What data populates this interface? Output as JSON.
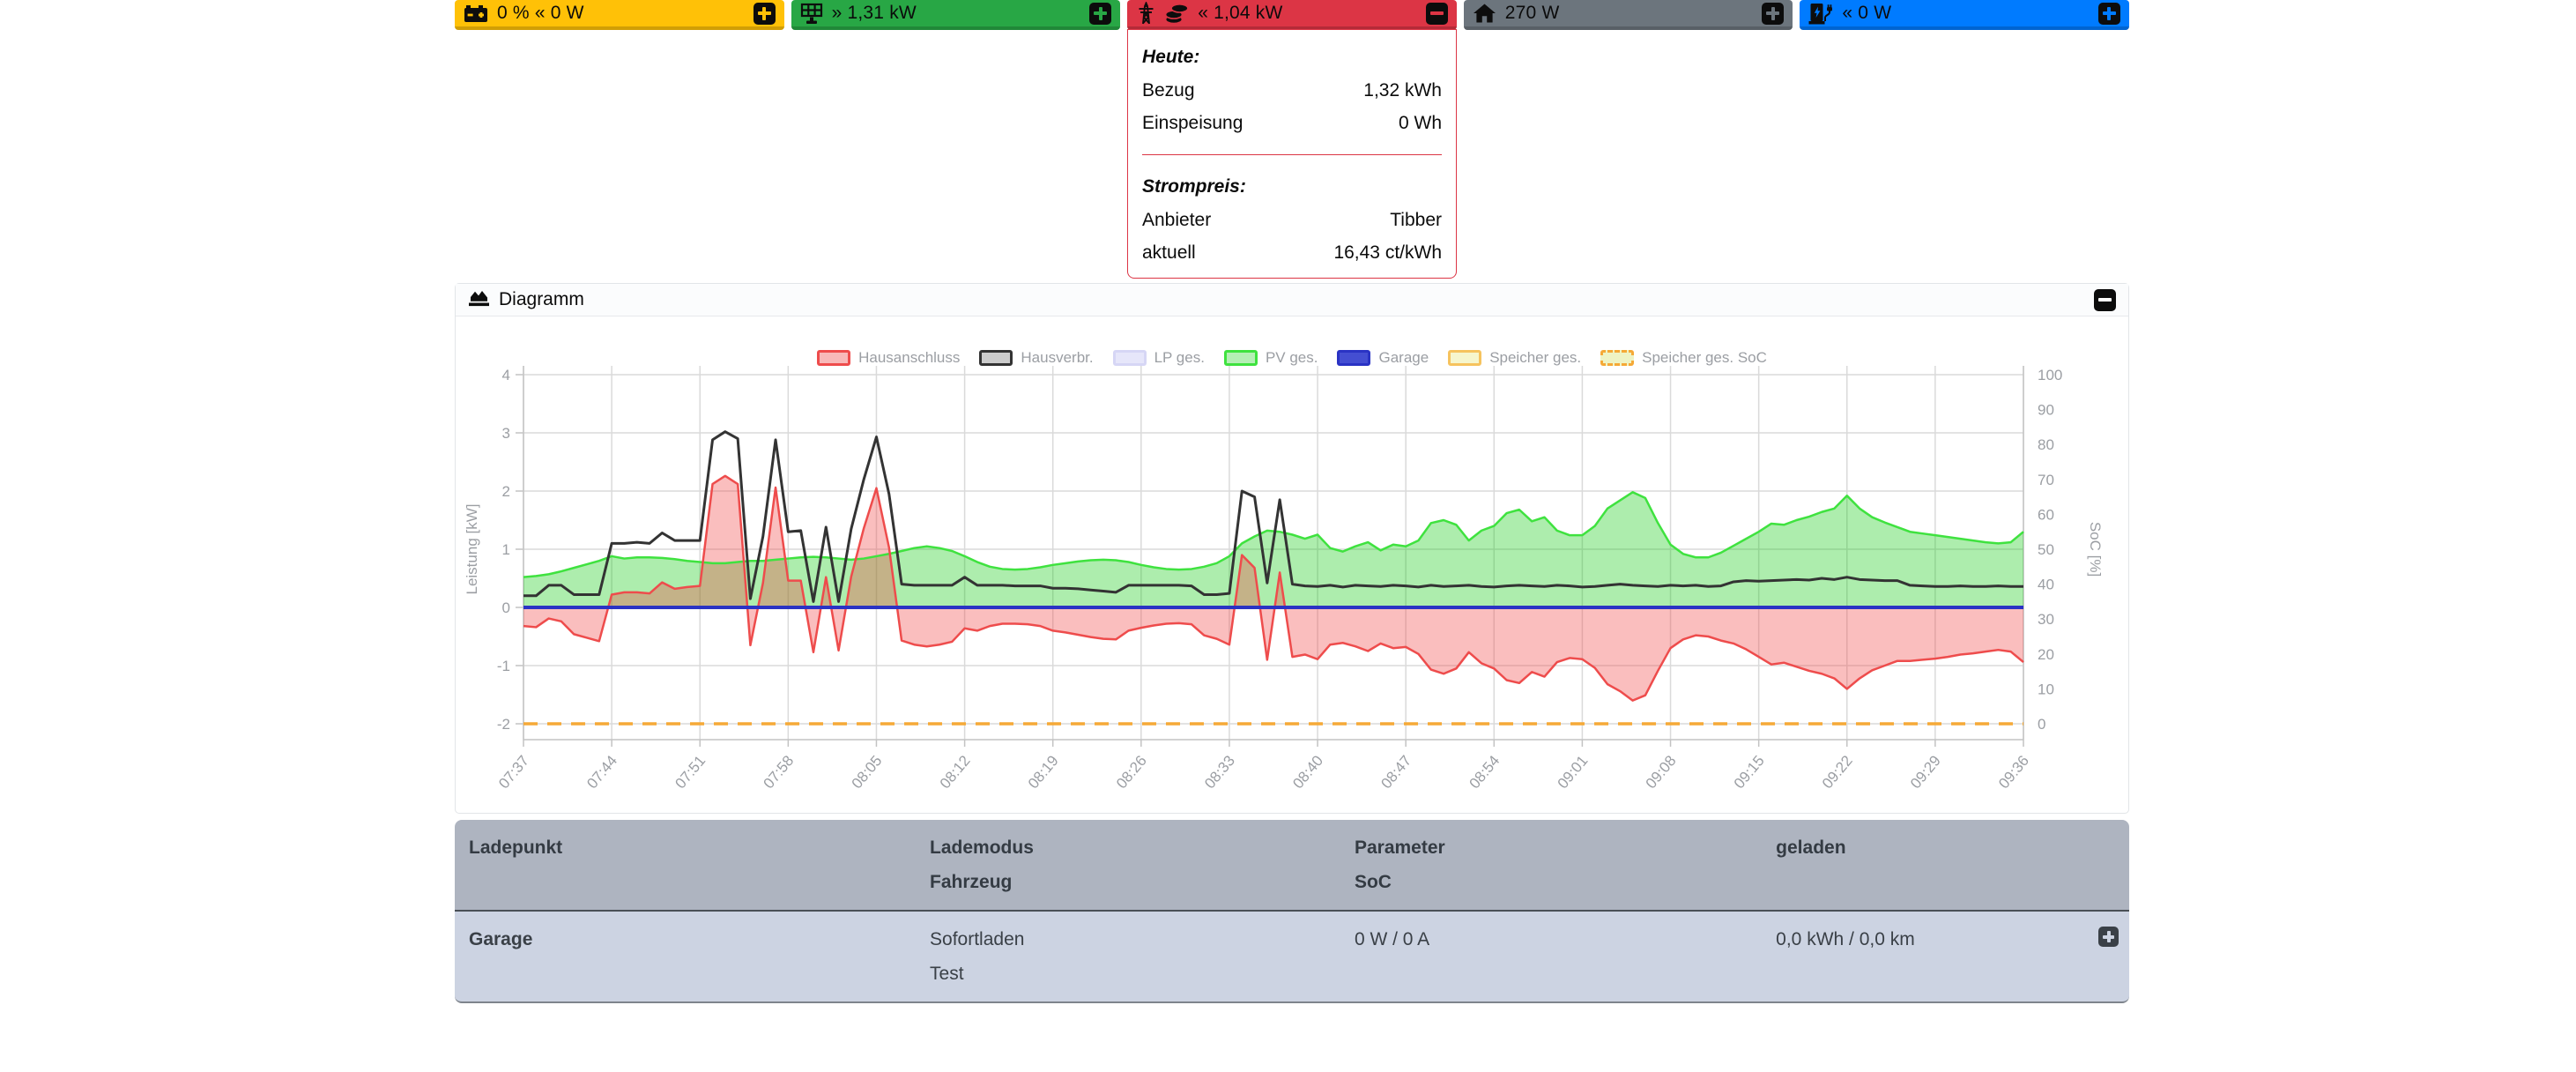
{
  "top_bar": {
    "tiles": [
      {
        "name": "battery",
        "icon": "car-battery-icon",
        "text": "0 % « 0 W",
        "bg": "#ffc107",
        "action": "expand"
      },
      {
        "name": "pv",
        "icon": "solar-panel-icon",
        "text": "» 1,31 kW",
        "bg": "#28a745",
        "action": "expand"
      },
      {
        "name": "grid",
        "icon": "transmission-tower-icon+coins-icon",
        "text": "« 1,04 kW",
        "bg": "#dc3545",
        "action": "collapse"
      },
      {
        "name": "house",
        "icon": "home-icon",
        "text": "270 W",
        "bg": "#6c757d",
        "action": "expand"
      },
      {
        "name": "chargepoint",
        "icon": "charging-station-icon",
        "text": "« 0 W",
        "bg": "#007bff",
        "action": "expand"
      }
    ]
  },
  "grid_popup": {
    "accent": "#dc3545",
    "section1_title": "Heute:",
    "rows": [
      {
        "label": "Bezug",
        "value": "1,32 kWh"
      },
      {
        "label": "Einspeisung",
        "value": "0 Wh"
      }
    ],
    "section2_title": "Strompreis:",
    "rows2": [
      {
        "label": "Anbieter",
        "value": "Tibber"
      },
      {
        "label": "aktuell",
        "value": "16,43 ct/kWh"
      }
    ]
  },
  "diagram_card": {
    "title": "Diagramm",
    "collapse_action": "collapse"
  },
  "chart_data": {
    "type": "line",
    "title": "",
    "xlabel": "",
    "ylabel": "Leistung [kW]",
    "y2label": "SoC [%]",
    "ylim": [
      -2,
      4
    ],
    "y2lim": [
      0,
      100
    ],
    "grid": true,
    "legend_position": "top",
    "x_tick_labels": [
      "07:37",
      "07:44",
      "07:51",
      "07:58",
      "08:05",
      "08:12",
      "08:19",
      "08:26",
      "08:33",
      "08:40",
      "08:47",
      "08:54",
      "09:01",
      "09:08",
      "09:15",
      "09:22",
      "09:29",
      "09:36"
    ],
    "minutes_per_point": 1,
    "points_per_tick": 7,
    "series": [
      {
        "name": "Hausanschluss",
        "color": "#ee4c4c",
        "fill": "rgba(240,70,70,0.35)",
        "legend_fill": "#f8b9b9",
        "width": 2.5,
        "z": 3,
        "values": [
          -0.32,
          -0.34,
          -0.19,
          -0.24,
          -0.46,
          -0.52,
          -0.58,
          0.22,
          0.26,
          0.26,
          0.24,
          0.43,
          0.32,
          0.35,
          0.37,
          2.12,
          2.26,
          2.12,
          -0.65,
          0.42,
          2.06,
          0.46,
          0.46,
          -0.77,
          0.52,
          -0.74,
          0.53,
          1.36,
          2.05,
          1.03,
          -0.57,
          -0.64,
          -0.67,
          -0.64,
          -0.59,
          -0.36,
          -0.4,
          -0.32,
          -0.28,
          -0.28,
          -0.29,
          -0.32,
          -0.4,
          -0.43,
          -0.47,
          -0.51,
          -0.54,
          -0.55,
          -0.4,
          -0.35,
          -0.31,
          -0.28,
          -0.27,
          -0.29,
          -0.48,
          -0.54,
          -0.64,
          0.9,
          0.68,
          -0.9,
          0.6,
          -0.85,
          -0.81,
          -0.89,
          -0.64,
          -0.61,
          -0.67,
          -0.75,
          -0.62,
          -0.7,
          -0.68,
          -0.8,
          -1.07,
          -1.14,
          -1.05,
          -0.77,
          -0.96,
          -1.05,
          -1.25,
          -1.3,
          -1.11,
          -1.19,
          -0.94,
          -0.87,
          -0.89,
          -1.04,
          -1.32,
          -1.44,
          -1.6,
          -1.51,
          -1.09,
          -0.7,
          -0.55,
          -0.48,
          -0.5,
          -0.57,
          -0.62,
          -0.72,
          -0.85,
          -0.98,
          -0.95,
          -1.02,
          -1.09,
          -1.14,
          -1.22,
          -1.4,
          -1.22,
          -1.08,
          -1.0,
          -0.92,
          -0.92,
          -0.9,
          -0.88,
          -0.85,
          -0.81,
          -0.79,
          -0.76,
          -0.73,
          -0.76,
          -0.94
        ]
      },
      {
        "name": "Hausverbr.",
        "color": "#333333",
        "legend_fill": "#cccccc",
        "width": 3,
        "z": 4,
        "values": [
          0.2,
          0.2,
          0.38,
          0.38,
          0.22,
          0.22,
          0.22,
          1.1,
          1.1,
          1.12,
          1.1,
          1.28,
          1.15,
          1.15,
          1.15,
          2.88,
          3.02,
          2.9,
          0.15,
          1.22,
          2.88,
          1.3,
          1.32,
          0.1,
          1.38,
          0.1,
          1.35,
          2.2,
          2.93,
          1.95,
          0.4,
          0.38,
          0.38,
          0.38,
          0.38,
          0.52,
          0.38,
          0.38,
          0.38,
          0.37,
          0.37,
          0.37,
          0.33,
          0.33,
          0.32,
          0.3,
          0.28,
          0.26,
          0.38,
          0.38,
          0.38,
          0.38,
          0.38,
          0.37,
          0.22,
          0.22,
          0.24,
          2.0,
          1.9,
          0.42,
          1.85,
          0.4,
          0.37,
          0.36,
          0.38,
          0.35,
          0.38,
          0.37,
          0.36,
          0.38,
          0.37,
          0.35,
          0.38,
          0.36,
          0.37,
          0.38,
          0.36,
          0.35,
          0.37,
          0.38,
          0.37,
          0.36,
          0.38,
          0.37,
          0.35,
          0.36,
          0.38,
          0.4,
          0.38,
          0.37,
          0.36,
          0.38,
          0.37,
          0.38,
          0.36,
          0.37,
          0.44,
          0.46,
          0.45,
          0.46,
          0.47,
          0.48,
          0.47,
          0.5,
          0.48,
          0.52,
          0.48,
          0.47,
          0.46,
          0.46,
          0.38,
          0.37,
          0.36,
          0.36,
          0.37,
          0.36,
          0.36,
          0.37,
          0.36,
          0.36
        ]
      },
      {
        "name": "LP ges.",
        "color": "#d6d6f5",
        "legend_fill": "#e6e6fa",
        "width": 2.5,
        "z": 0,
        "const": 0
      },
      {
        "name": "PV ges.",
        "color": "#3fe23f",
        "fill": "rgba(0,200,0,0.32)",
        "legend_fill": "#b5efb5",
        "width": 2.5,
        "z": 2,
        "values": [
          0.52,
          0.54,
          0.57,
          0.62,
          0.68,
          0.74,
          0.8,
          0.88,
          0.84,
          0.86,
          0.86,
          0.85,
          0.83,
          0.8,
          0.78,
          0.76,
          0.76,
          0.78,
          0.8,
          0.8,
          0.82,
          0.84,
          0.86,
          0.87,
          0.86,
          0.84,
          0.82,
          0.84,
          0.88,
          0.92,
          0.97,
          1.02,
          1.05,
          1.02,
          0.97,
          0.88,
          0.78,
          0.7,
          0.66,
          0.65,
          0.66,
          0.69,
          0.73,
          0.76,
          0.79,
          0.81,
          0.82,
          0.81,
          0.78,
          0.73,
          0.69,
          0.66,
          0.65,
          0.66,
          0.7,
          0.76,
          0.88,
          1.1,
          1.22,
          1.32,
          1.3,
          1.25,
          1.18,
          1.25,
          1.02,
          0.96,
          1.05,
          1.12,
          0.98,
          1.08,
          1.05,
          1.15,
          1.45,
          1.5,
          1.42,
          1.15,
          1.32,
          1.4,
          1.62,
          1.68,
          1.48,
          1.55,
          1.32,
          1.24,
          1.24,
          1.4,
          1.7,
          1.84,
          1.98,
          1.88,
          1.45,
          1.08,
          0.92,
          0.86,
          0.86,
          0.94,
          1.06,
          1.18,
          1.3,
          1.44,
          1.42,
          1.5,
          1.56,
          1.64,
          1.7,
          1.92,
          1.7,
          1.55,
          1.46,
          1.38,
          1.3,
          1.27,
          1.24,
          1.21,
          1.18,
          1.15,
          1.12,
          1.1,
          1.12,
          1.3
        ]
      },
      {
        "name": "Garage",
        "color": "#2a33c4",
        "legend_fill": "#444ed2",
        "width": 4,
        "z": 6,
        "const": 0
      },
      {
        "name": "Speicher ges.",
        "color": "#f6c35e",
        "legend_fill": "#f6f6cd",
        "width": 3,
        "z": 5,
        "const": 0
      },
      {
        "name": "Speicher ges. SoC",
        "color": "#f5a937",
        "legend_fill": "#eef3c4",
        "width": 3.5,
        "z": 7,
        "dash": true,
        "axis": "y2",
        "const": 0
      }
    ]
  },
  "table": {
    "headers": {
      "col1": "Ladepunkt",
      "col2a": "Lademodus",
      "col2b": "Fahrzeug",
      "col3a": "Parameter",
      "col3b": "SoC",
      "col4": "geladen"
    },
    "row": {
      "name": "Garage",
      "mode": "Sofortladen",
      "vehicle": "Test",
      "parameter": "0 W / 0 A",
      "charged": "0,0 kWh / 0,0 km",
      "action": "expand"
    }
  }
}
